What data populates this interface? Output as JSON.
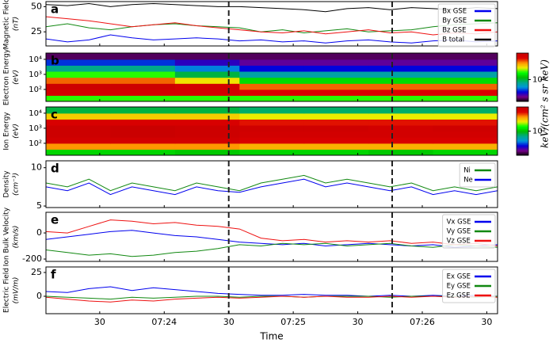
{
  "chart_data": [
    {
      "type": "line",
      "panel_label": "a",
      "ylabel": "Magnetic Field",
      "yunit": "(nT)",
      "x": [
        5,
        15,
        25,
        35,
        45,
        55,
        65,
        75,
        85,
        95,
        105,
        115,
        125,
        135,
        145,
        155,
        165,
        175,
        185,
        195,
        205,
        215
      ],
      "xlim": [
        5,
        215
      ],
      "xticks": [
        30,
        60,
        90,
        120,
        150,
        180,
        210
      ],
      "ylim": [
        11,
        55
      ],
      "yticks": [
        25,
        50
      ],
      "vlines": [
        90,
        166
      ],
      "series": [
        {
          "name": "Bx GSE",
          "color": "#0000ee",
          "values": [
            18,
            15,
            17,
            22,
            19,
            17,
            18,
            19,
            18,
            16,
            17,
            15,
            16,
            14,
            16,
            17,
            15,
            14,
            16,
            17,
            15,
            16
          ]
        },
        {
          "name": "By GSE",
          "color": "#118811",
          "values": [
            30,
            33,
            29,
            27,
            30,
            32,
            33,
            31,
            30,
            29,
            25,
            27,
            24,
            26,
            28,
            25,
            26,
            27,
            30,
            32,
            33,
            34
          ]
        },
        {
          "name": "Bz GSE",
          "color": "#ee1111",
          "values": [
            40,
            38,
            36,
            33,
            30,
            32,
            34,
            31,
            29,
            27,
            25,
            24,
            26,
            23,
            25,
            27,
            24,
            25,
            22,
            24,
            23,
            25
          ]
        },
        {
          "name": "B total",
          "color": "#000000",
          "values": [
            52,
            51,
            53,
            50,
            52,
            53,
            52,
            51,
            50,
            50,
            49,
            48,
            47,
            45,
            48,
            49,
            47,
            49,
            48,
            47,
            49,
            48
          ]
        }
      ]
    },
    {
      "type": "heatmap",
      "panel_label": "b",
      "ylabel": "Electron Energy",
      "yunit": "(eV)",
      "log_y": true,
      "x_bins": [
        5,
        35,
        65,
        95,
        125,
        155,
        185,
        215
      ],
      "y_bins": [
        16,
        40,
        100,
        250,
        630,
        1600,
        4000,
        10000,
        26000
      ],
      "xlim": [
        5,
        215
      ],
      "xticks": [
        30,
        60,
        90,
        120,
        150,
        180,
        210
      ],
      "ylim": [
        16,
        26000
      ],
      "vlines": [
        90,
        166
      ],
      "yticks": [
        {
          "value": 100,
          "label": "10²"
        },
        {
          "value": 1000,
          "label": "10³"
        },
        {
          "value": 10000,
          "label": "10⁴"
        }
      ],
      "z": [
        [
          2000000.0,
          2000000.0,
          2000000.0,
          2000000.0,
          2000000.0,
          2000000.0,
          2000000.0
        ],
        [
          8000000.0,
          8000000.0,
          8000000.0,
          7000000.0,
          7000000.0,
          7000000.0,
          7000000.0
        ],
        [
          9000000.0,
          9000000.0,
          8000000.0,
          5000000.0,
          5000000.0,
          5000000.0,
          5000000.0
        ],
        [
          5000000.0,
          5000000.0,
          3000000.0,
          1500000.0,
          1500000.0,
          1500000.0,
          1500000.0
        ],
        [
          2000000.0,
          2000000.0,
          1000000.0,
          700000.0,
          700000.0,
          700000.0,
          700000.0
        ],
        [
          800000.0,
          800000.0,
          500000.0,
          350000.0,
          350000.0,
          350000.0,
          350000.0
        ],
        [
          400000.0,
          400000.0,
          300000.0,
          250000.0,
          250000.0,
          250000.0,
          250000.0
        ],
        [
          200000.0,
          200000.0,
          200000.0,
          200000.0,
          200000.0,
          200000.0,
          200000.0
        ]
      ],
      "zlim": [
        150000,
        10000000
      ],
      "zticks": [
        {
          "value": 1000000,
          "label": "10⁶"
        }
      ],
      "colorbar_label": "keV/(cm² s sr keV)"
    },
    {
      "type": "heatmap",
      "panel_label": "c",
      "ylabel": "Ion Energy",
      "yunit": "(eV)",
      "log_y": true,
      "x_bins": [
        5,
        35,
        65,
        95,
        125,
        155,
        185,
        215
      ],
      "y_bins": [
        16,
        40,
        100,
        250,
        630,
        1600,
        4000,
        10000,
        26000
      ],
      "xlim": [
        5,
        215
      ],
      "xticks": [
        30,
        60,
        90,
        120,
        150,
        180,
        210
      ],
      "ylim": [
        16,
        26000
      ],
      "vlines": [
        90,
        166
      ],
      "yticks": [
        {
          "value": 100,
          "label": "10²"
        },
        {
          "value": 1000,
          "label": "10³"
        },
        {
          "value": 10000,
          "label": "10⁴"
        }
      ],
      "z": [
        [
          120000.0,
          120000.0,
          110000.0,
          120000.0,
          120000.0,
          110000.0,
          120000.0
        ],
        [
          400000.0,
          400000.0,
          400000.0,
          350000.0,
          350000.0,
          350000.0,
          350000.0
        ],
        [
          800000.0,
          800000.0,
          800000.0,
          700000.0,
          700000.0,
          700000.0,
          700000.0
        ],
        [
          900000.0,
          950000.0,
          900000.0,
          800000.0,
          800000.0,
          800000.0,
          800000.0
        ],
        [
          900000.0,
          950000.0,
          900000.0,
          850000.0,
          850000.0,
          800000.0,
          850000.0
        ],
        [
          700000.0,
          700000.0,
          700000.0,
          600000.0,
          600000.0,
          600000.0,
          600000.0
        ],
        [
          300000.0,
          300000.0,
          300000.0,
          250000.0,
          250000.0,
          250000.0,
          250000.0
        ],
        [
          80000.0,
          80000.0,
          80000.0,
          70000.0,
          70000.0,
          70000.0,
          70000.0
        ]
      ],
      "zlim": [
        10000,
        1000000
      ],
      "zticks": [
        {
          "value": 100000,
          "label": "10⁵"
        }
      ]
    },
    {
      "type": "line",
      "panel_label": "d",
      "ylabel": "Density",
      "yunit": "(cm⁻³)",
      "x": [
        5,
        15,
        25,
        35,
        45,
        55,
        65,
        75,
        85,
        95,
        105,
        115,
        125,
        135,
        145,
        155,
        165,
        175,
        185,
        195,
        205,
        215
      ],
      "xlim": [
        5,
        215
      ],
      "xticks": [
        30,
        60,
        90,
        120,
        150,
        180,
        210
      ],
      "ylim": [
        4.8,
        10.9
      ],
      "yticks": [
        5,
        10
      ],
      "vlines": [
        90,
        166
      ],
      "series": [
        {
          "name": "Ni",
          "color": "#118811",
          "values": [
            8,
            7.5,
            8.5,
            7,
            8,
            7.5,
            7,
            8,
            7.5,
            7,
            8,
            8.5,
            9,
            8,
            8.5,
            8,
            7.5,
            8,
            7,
            7.5,
            7,
            7.5
          ]
        },
        {
          "name": "Ne",
          "color": "#0000ee",
          "values": [
            7.5,
            7,
            8,
            6.5,
            7.5,
            7,
            6.5,
            7.5,
            7,
            6.8,
            7.5,
            8,
            8.5,
            7.5,
            8,
            7.5,
            7,
            7.5,
            6.5,
            7,
            6.5,
            7
          ]
        }
      ]
    },
    {
      "type": "line",
      "panel_label": "e",
      "ylabel": "Ion Bulk Velocity",
      "yunit": "(km/s)",
      "x": [
        5,
        15,
        25,
        35,
        45,
        55,
        65,
        75,
        85,
        95,
        105,
        115,
        125,
        135,
        145,
        155,
        165,
        175,
        185,
        195,
        205,
        215
      ],
      "xlim": [
        5,
        215
      ],
      "xticks": [
        30,
        60,
        90,
        120,
        150,
        180,
        210
      ],
      "ylim": [
        -218,
        158
      ],
      "yticks": [
        -200,
        0
      ],
      "vlines": [
        90,
        166
      ],
      "series": [
        {
          "name": "Vx GSE",
          "color": "#0000ee",
          "values": [
            -50,
            -30,
            -10,
            10,
            20,
            0,
            -20,
            -30,
            -50,
            -70,
            -80,
            -90,
            -80,
            -100,
            -90,
            -80,
            -90,
            -100,
            -90,
            -110,
            -100,
            -90
          ]
        },
        {
          "name": "Vy GSE",
          "color": "#118811",
          "values": [
            -130,
            -150,
            -170,
            -160,
            -180,
            -170,
            -150,
            -140,
            -120,
            -90,
            -100,
            -80,
            -90,
            -80,
            -100,
            -90,
            -80,
            -100,
            -110,
            -90,
            -100,
            -110
          ]
        },
        {
          "name": "Vz GSE",
          "color": "#ee1111",
          "values": [
            10,
            0,
            50,
            100,
            90,
            70,
            80,
            60,
            50,
            30,
            -40,
            -60,
            -50,
            -70,
            -60,
            -70,
            -60,
            -80,
            -70,
            -90,
            -80,
            -100
          ]
        }
      ]
    },
    {
      "type": "line",
      "panel_label": "f",
      "ylabel": "Electric Field",
      "yunit": "(mV/m)",
      "xlabel": "Time",
      "x": [
        5,
        15,
        25,
        35,
        45,
        55,
        65,
        75,
        85,
        95,
        105,
        115,
        125,
        135,
        145,
        155,
        165,
        175,
        185,
        195,
        205,
        215
      ],
      "xlim": [
        5,
        215
      ],
      "ylim": [
        -18.3,
        30.8
      ],
      "yticks": [
        0,
        25
      ],
      "vlines": [
        90,
        166
      ],
      "xticks": [
        {
          "value": 30,
          "label": "30"
        },
        {
          "value": 60,
          "label": "07:24"
        },
        {
          "value": 90,
          "label": "30"
        },
        {
          "value": 120,
          "label": "07:25"
        },
        {
          "value": 150,
          "label": "30"
        },
        {
          "value": 180,
          "label": "07:26"
        },
        {
          "value": 210,
          "label": "30"
        }
      ],
      "series": [
        {
          "name": "Ex GSE",
          "color": "#0000ee",
          "values": [
            5,
            4,
            8,
            10,
            6,
            9,
            7,
            5,
            3,
            2,
            1,
            1,
            2,
            1,
            1,
            0,
            1,
            0,
            1,
            0,
            1,
            0
          ]
        },
        {
          "name": "Ey GSE",
          "color": "#118811",
          "values": [
            0,
            -1,
            -2,
            -3,
            -1,
            -2,
            -1,
            0,
            0,
            -1,
            0,
            0,
            -1,
            0,
            0,
            0,
            -1,
            0,
            0,
            0,
            -1,
            0
          ]
        },
        {
          "name": "Ez GSE",
          "color": "#ee1111",
          "values": [
            -1,
            -3,
            -5,
            -6,
            -4,
            -5,
            -3,
            -2,
            -1,
            -2,
            -1,
            0,
            -1,
            0,
            -1,
            -1,
            0,
            -1,
            0,
            -1,
            0,
            -1
          ]
        }
      ]
    }
  ]
}
